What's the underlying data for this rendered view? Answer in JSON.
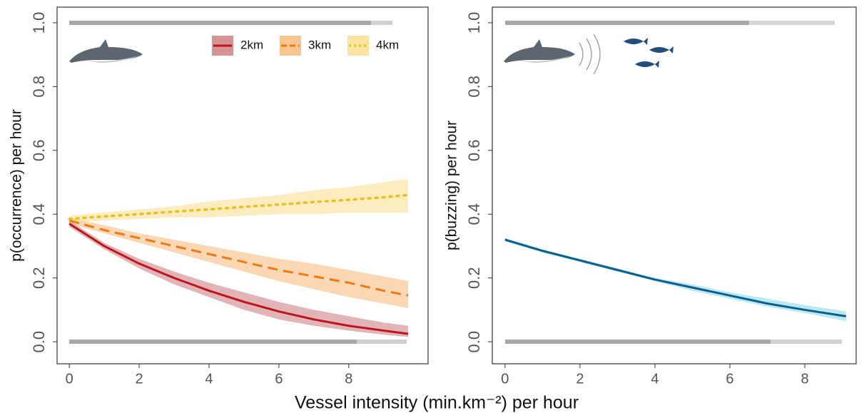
{
  "x_label": "Vessel intensity (min.km⁻²) per hour",
  "chart_data": [
    {
      "type": "line",
      "ylabel": "p(occurrence) per hour",
      "xlim": [
        -0.35,
        10.27
      ],
      "ylim": [
        -0.069,
        1.049
      ],
      "xticks": [
        0,
        2,
        4,
        6,
        8
      ],
      "yticks": [
        {
          "value": 0,
          "label": "0.0"
        },
        0.2,
        0.4,
        0.6,
        0.8,
        {
          "value": 1,
          "label": "1.0"
        }
      ],
      "legend": "top-right",
      "x": [
        0,
        1,
        2,
        3,
        4,
        5,
        6,
        7,
        8,
        9,
        9.7
      ],
      "series": [
        {
          "name": "2km",
          "color": "#c0141c",
          "band_color": "#c9787c",
          "dash": "solid",
          "values": [
            0.37,
            0.3,
            0.245,
            0.2,
            0.16,
            0.125,
            0.095,
            0.07,
            0.05,
            0.035,
            0.025
          ],
          "lower": [
            0.36,
            0.29,
            0.23,
            0.18,
            0.14,
            0.1,
            0.07,
            0.05,
            0.035,
            0.022,
            0.015
          ],
          "upper": [
            0.38,
            0.31,
            0.26,
            0.22,
            0.185,
            0.155,
            0.125,
            0.1,
            0.08,
            0.06,
            0.05
          ]
        },
        {
          "name": "3km",
          "color": "#ee7a12",
          "band_color": "#f7b774",
          "dash": "dashed",
          "values": [
            0.38,
            0.35,
            0.325,
            0.3,
            0.275,
            0.25,
            0.225,
            0.205,
            0.185,
            0.16,
            0.145
          ],
          "lower": [
            0.37,
            0.34,
            0.31,
            0.28,
            0.25,
            0.22,
            0.19,
            0.165,
            0.14,
            0.12,
            0.105
          ],
          "upper": [
            0.39,
            0.365,
            0.34,
            0.32,
            0.3,
            0.28,
            0.26,
            0.245,
            0.225,
            0.205,
            0.19
          ]
        },
        {
          "name": "4km",
          "color": "#e8c21c",
          "band_color": "#fbdc8a",
          "dash": "dotted",
          "values": [
            0.385,
            0.393,
            0.4,
            0.408,
            0.415,
            0.423,
            0.43,
            0.438,
            0.445,
            0.453,
            0.46
          ],
          "lower": [
            0.375,
            0.38,
            0.385,
            0.39,
            0.39,
            0.395,
            0.4,
            0.4,
            0.405,
            0.405,
            0.405
          ],
          "upper": [
            0.395,
            0.405,
            0.415,
            0.425,
            0.44,
            0.45,
            0.46,
            0.475,
            0.485,
            0.5,
            0.51
          ]
        }
      ]
    },
    {
      "type": "line",
      "ylabel": "p(buzzing) per hour",
      "xlim": [
        -0.34,
        9.37
      ],
      "ylim": [
        -0.069,
        1.049
      ],
      "xticks": [
        0,
        2,
        4,
        6,
        8
      ],
      "yticks": [
        {
          "value": 0,
          "label": "0.0"
        },
        0.2,
        0.4,
        0.6,
        0.8,
        {
          "value": 1,
          "label": "1.0"
        }
      ],
      "x": [
        0,
        1,
        2,
        3,
        4,
        5,
        6,
        7,
        8,
        9.1
      ],
      "series": [
        {
          "color": "#0b5f8e",
          "band_color": "#7fd8e6",
          "dash": "solid",
          "values": [
            0.32,
            0.285,
            0.255,
            0.225,
            0.195,
            0.17,
            0.145,
            0.12,
            0.1,
            0.08
          ],
          "lower": [
            0.315,
            0.28,
            0.25,
            0.22,
            0.19,
            0.16,
            0.135,
            0.11,
            0.09,
            0.065
          ],
          "upper": [
            0.325,
            0.29,
            0.26,
            0.23,
            0.2,
            0.18,
            0.155,
            0.135,
            0.115,
            0.095
          ]
        }
      ]
    }
  ]
}
